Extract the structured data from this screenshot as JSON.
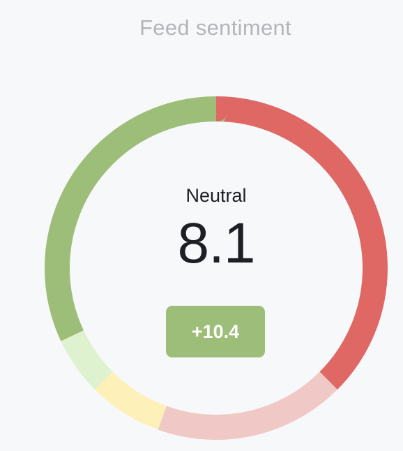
{
  "widget": {
    "title": "Feed sentiment"
  },
  "center": {
    "sentiment_label": "Neutral",
    "score": "8.1",
    "change": "+10.4",
    "change_color": "#9dbe78"
  },
  "chart_data": {
    "type": "donut",
    "title": "Feed sentiment",
    "series": [
      {
        "value": 37.5,
        "color": "#df6764"
      },
      {
        "value": 18.0,
        "color": "#f0c9c7"
      },
      {
        "value": 7.0,
        "color": "#fdf0b9"
      },
      {
        "value": 5.5,
        "color": "#def2cf"
      },
      {
        "value": 32.0,
        "color": "#9dbe78"
      }
    ],
    "center_value": 8.1,
    "center_label": "Neutral",
    "change": 10.4
  }
}
